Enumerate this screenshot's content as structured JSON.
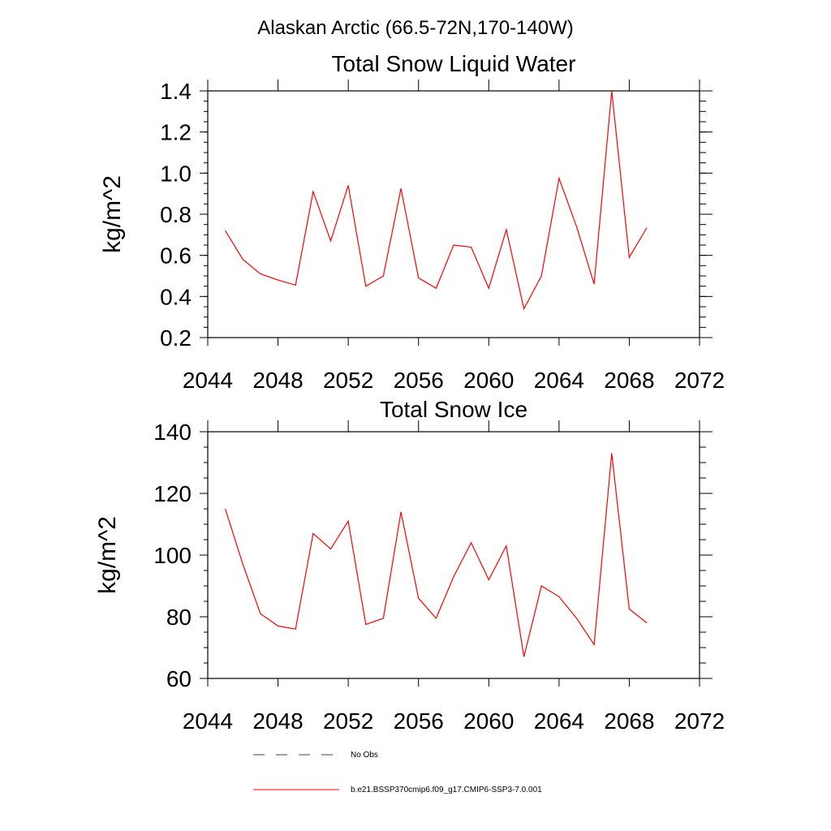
{
  "figure_title": "Alaskan Arctic (66.5-72N,170-140W)",
  "chart_data": [
    {
      "type": "line",
      "title": "Total Snow Liquid Water",
      "xlabel": "",
      "ylabel": "kg/m^2",
      "xlim": [
        2044,
        2072
      ],
      "ylim": [
        0.2,
        1.4
      ],
      "x_ticks": [
        "2044",
        "2048",
        "2052",
        "2056",
        "2060",
        "2064",
        "2068",
        "2072"
      ],
      "y_ticks": [
        "0.2",
        "0.4",
        "0.6",
        "0.8",
        "1.0",
        "1.2",
        "1.4"
      ],
      "x": [
        2045,
        2046,
        2047,
        2048,
        2049,
        2050,
        2051,
        2052,
        2053,
        2054,
        2055,
        2056,
        2057,
        2058,
        2059,
        2060,
        2061,
        2062,
        2063,
        2064,
        2065,
        2066,
        2067,
        2068,
        2069
      ],
      "series": [
        {
          "name": "b.e21.BSSP370cmip6.f09_g17.CMIP6-SSP3-7.0.001",
          "color": "#ff0000",
          "values": [
            0.72,
            0.58,
            0.51,
            0.48,
            0.455,
            0.91,
            0.67,
            0.94,
            0.45,
            0.5,
            0.925,
            0.49,
            0.44,
            0.65,
            0.64,
            0.44,
            0.725,
            0.34,
            0.5,
            0.975,
            0.74,
            0.46,
            1.4,
            0.59,
            0.735
          ]
        }
      ]
    },
    {
      "type": "line",
      "title": "Total Snow Ice",
      "xlabel": "",
      "ylabel": "kg/m^2",
      "xlim": [
        2044,
        2072
      ],
      "ylim": [
        60,
        140
      ],
      "x_ticks": [
        "2044",
        "2048",
        "2052",
        "2056",
        "2060",
        "2064",
        "2068",
        "2072"
      ],
      "y_ticks": [
        "60",
        "80",
        "100",
        "120",
        "140"
      ],
      "x": [
        2045,
        2046,
        2047,
        2048,
        2049,
        2050,
        2051,
        2052,
        2053,
        2054,
        2055,
        2056,
        2057,
        2058,
        2059,
        2060,
        2061,
        2062,
        2063,
        2064,
        2065,
        2066,
        2067,
        2068,
        2069
      ],
      "series": [
        {
          "name": "b.e21.BSSP370cmip6.f09_g17.CMIP6-SSP3-7.0.001",
          "color": "#ff0000",
          "values": [
            115,
            97,
            81,
            77,
            76,
            107,
            102,
            111,
            77.5,
            79.5,
            114,
            86,
            79.5,
            93,
            104,
            92,
            103,
            67,
            90,
            86.5,
            79.5,
            71,
            133,
            82.5,
            78
          ]
        }
      ]
    }
  ],
  "legend": [
    {
      "label": "No Obs",
      "color": "#2f3f8f",
      "style": "dashed"
    },
    {
      "label": "b.e21.BSSP370cmip6.f09_g17.CMIP6-SSP3-7.0.001",
      "color": "#ff0000",
      "style": "solid"
    }
  ]
}
